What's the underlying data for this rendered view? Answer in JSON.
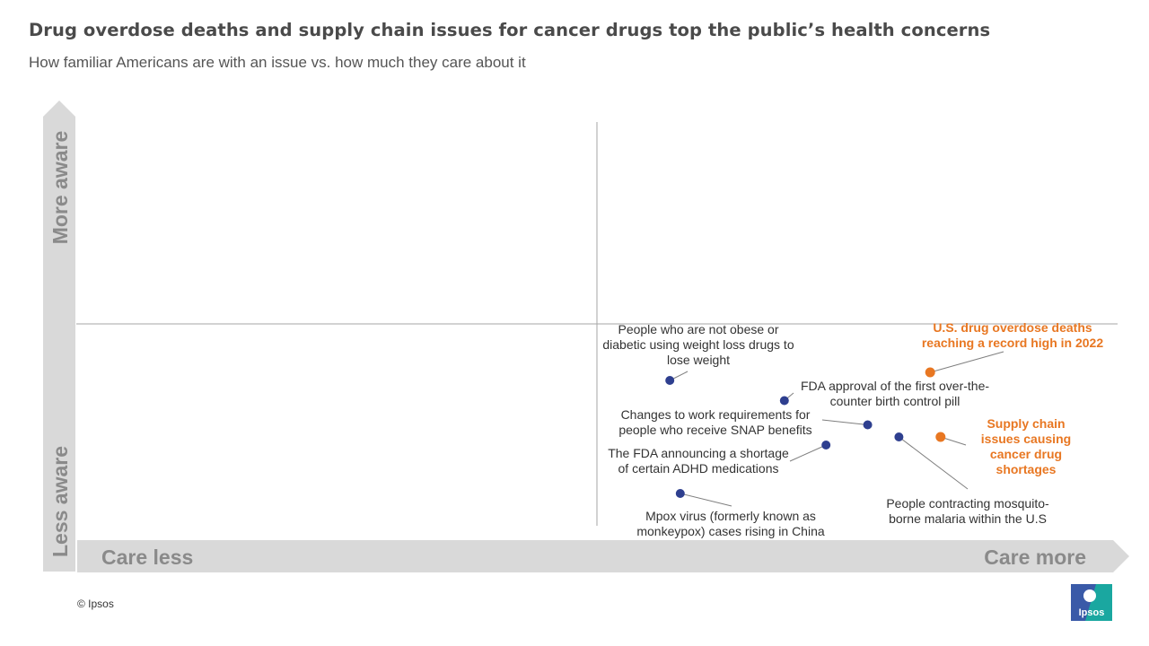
{
  "header": {
    "title": "Drug overdose deaths and supply chain issues for cancer drugs top the public’s health concerns",
    "subtitle": "How familiar Americans are with an issue vs. how much they care about it"
  },
  "footer": {
    "copyright": "© Ipsos",
    "logo_text": "Ipsos"
  },
  "colors": {
    "point": "#2e3f8f",
    "highlight": "#e87722",
    "axis_arrow": "#d9d9d9",
    "axis_text": "#8a8a8a",
    "quadrant_line": "#a6a6a6"
  },
  "chart_data": {
    "type": "scatter",
    "title": "Drug overdose deaths and supply chain issues for cancer drugs top the public’s health concerns",
    "subtitle": "How familiar Americans are with an issue vs. how much they care about it",
    "x_axis": {
      "low_label": "Care less",
      "high_label": "Care more",
      "range": [
        0,
        100
      ]
    },
    "y_axis": {
      "low_label": "Less aware",
      "high_label": "More aware",
      "range": [
        0,
        100
      ]
    },
    "quadrant_divider": {
      "x": 50,
      "y": 50
    },
    "grid": false,
    "points": [
      {
        "label": "U.S. drug overdose deaths reaching a record high in 2022",
        "x": 82,
        "y": 38,
        "highlight": true
      },
      {
        "label": "Supply chain issues causing cancer drug shortages",
        "x": 83,
        "y": 22,
        "highlight": true
      },
      {
        "label": "People who are not obese or diabetic using weight loss drugs to lose weight",
        "x": 57,
        "y": 36,
        "highlight": false
      },
      {
        "label": "FDA approval of the first over-the-counter birth control pill",
        "x": 68,
        "y": 31,
        "highlight": false
      },
      {
        "label": "Changes to work requirements for people who receive SNAP benefits",
        "x": 76,
        "y": 25,
        "highlight": false
      },
      {
        "label": "People contracting mosquito-borne malaria within the U.S",
        "x": 79,
        "y": 22,
        "highlight": false
      },
      {
        "label": "The FDA announcing a shortage of certain ADHD medications",
        "x": 72,
        "y": 20,
        "highlight": false
      },
      {
        "label": "Mpox virus (formerly known as monkeypox) cases rising in China",
        "x": 58,
        "y": 8,
        "highlight": false
      }
    ]
  }
}
